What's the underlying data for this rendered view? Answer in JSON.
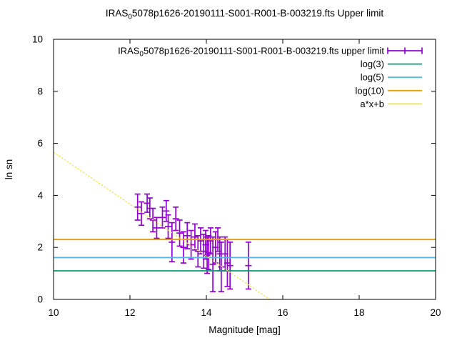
{
  "title": {
    "pre": "IRAS",
    "sub": "0",
    "rest": "5078p1626-20190111-S001-R001-B-003219.fts Upper limit"
  },
  "chart_data": {
    "type": "scatter",
    "title": "IRAS_0 5078p1626-20190111-S001-R001-B-003219.fts Upper limit",
    "xlabel": "Magnitude [mag]",
    "ylabel": "ln sn",
    "xlim": [
      10,
      20
    ],
    "ylim": [
      0,
      10
    ],
    "xticks": [
      10,
      12,
      14,
      16,
      18,
      20
    ],
    "yticks": [
      0,
      2,
      4,
      6,
      8,
      10
    ],
    "grid": false,
    "legend_position": "top-right-inside",
    "background": "#ffffff",
    "series": [
      {
        "type": "errorbars",
        "name_pre": "IRAS",
        "name_sub": "0",
        "name_rest": "5078p1626-20190111-S001-R001-B-003219.fts upper limit",
        "color": "#9400d3",
        "points_format": [
          "magnitude",
          "ln_sn",
          "err"
        ],
        "points": [
          [
            12.2,
            3.55,
            0.5
          ],
          [
            12.3,
            3.3,
            0.45
          ],
          [
            12.45,
            3.7,
            0.35
          ],
          [
            12.52,
            3.5,
            0.4
          ],
          [
            12.6,
            3.05,
            0.45
          ],
          [
            12.7,
            2.75,
            0.4
          ],
          [
            12.85,
            3.15,
            0.4
          ],
          [
            12.95,
            3.4,
            0.4
          ],
          [
            13.0,
            2.8,
            0.45
          ],
          [
            13.1,
            2.2,
            0.75
          ],
          [
            13.2,
            3.1,
            0.45
          ],
          [
            13.3,
            2.55,
            0.5
          ],
          [
            13.4,
            2.0,
            0.6
          ],
          [
            13.5,
            2.45,
            0.5
          ],
          [
            13.6,
            2.1,
            0.55
          ],
          [
            13.7,
            2.4,
            0.5
          ],
          [
            13.78,
            1.85,
            0.6
          ],
          [
            13.85,
            2.25,
            0.5
          ],
          [
            13.93,
            1.85,
            0.65
          ],
          [
            13.98,
            2.1,
            0.55
          ],
          [
            14.02,
            1.7,
            0.7
          ],
          [
            14.06,
            1.8,
            0.65
          ],
          [
            14.11,
            2.25,
            0.5
          ],
          [
            14.17,
            1.35,
            1.05
          ],
          [
            14.24,
            2.0,
            0.6
          ],
          [
            14.3,
            2.3,
            0.45
          ],
          [
            14.35,
            1.75,
            0.65
          ],
          [
            14.39,
            1.25,
            0.95
          ],
          [
            14.49,
            1.75,
            0.65
          ],
          [
            14.55,
            1.4,
            0.9
          ],
          [
            14.62,
            1.3,
            0.9
          ],
          [
            15.1,
            1.3,
            0.9
          ]
        ]
      },
      {
        "type": "hline",
        "name": "log(3)",
        "value": 1.0986,
        "color": "#009e73"
      },
      {
        "type": "hline",
        "name": "log(5)",
        "value": 1.6094,
        "color": "#56b4e9"
      },
      {
        "type": "hline",
        "name": "log(10)",
        "value": 2.3026,
        "color": "#e69f00"
      },
      {
        "type": "linear",
        "name": "a*x+b",
        "a": -1.0,
        "b": 15.66,
        "color": "#f0e442",
        "clip_y_min": 0,
        "dashed": true
      }
    ]
  }
}
